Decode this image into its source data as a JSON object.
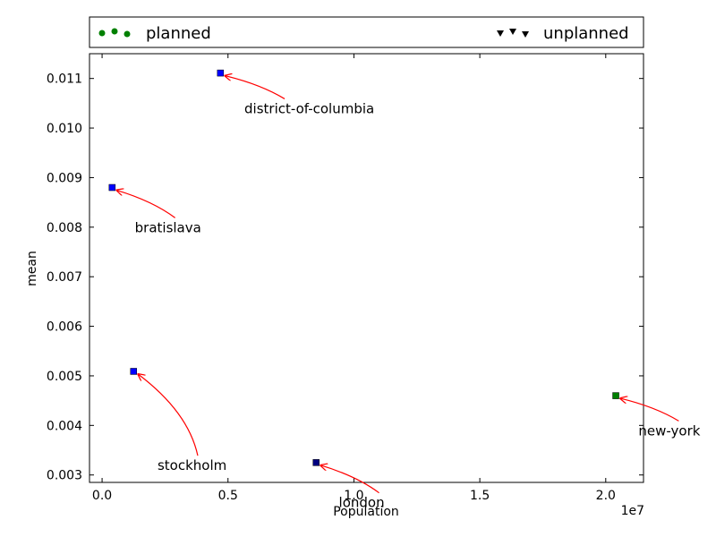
{
  "chart_data": {
    "type": "scatter",
    "xlabel": "Population",
    "ylabel": "mean",
    "x_offset_label": "1e7",
    "xlim": [
      -0.05,
      2.15
    ],
    "ylim": [
      0.00285,
      0.0115
    ],
    "x_ticks": [
      0.0,
      0.5,
      1.0,
      1.5,
      2.0
    ],
    "x_tick_labels": [
      "0.0",
      "0.5",
      "1.0",
      "1.5",
      "2.0"
    ],
    "y_ticks": [
      0.003,
      0.004,
      0.005,
      0.006,
      0.007,
      0.008,
      0.009,
      0.01,
      0.011
    ],
    "y_tick_labels": [
      "0.003",
      "0.004",
      "0.005",
      "0.006",
      "0.007",
      "0.008",
      "0.009",
      "0.010",
      "0.011"
    ],
    "legend": {
      "placement": "top",
      "entries": [
        {
          "label": "planned",
          "marker": "circle",
          "color": "#008000"
        },
        {
          "label": "unplanned",
          "marker": "triangle-down",
          "color": "#000000"
        }
      ]
    },
    "points": [
      {
        "label": "district-of-columbia",
        "x": 0.47,
        "y": 0.01111,
        "color": "#0000ff",
        "label_x": 0.565,
        "label_y": 0.0103
      },
      {
        "label": "bratislava",
        "x": 0.04,
        "y": 0.0088,
        "color": "#0000ff",
        "label_x": 0.13,
        "label_y": 0.0079
      },
      {
        "label": "stockholm",
        "x": 0.125,
        "y": 0.00509,
        "color": "#0000ff",
        "label_x": 0.22,
        "label_y": 0.0031
      },
      {
        "label": "london",
        "x": 0.85,
        "y": 0.00325,
        "color": "#000080",
        "label_x": 0.94,
        "label_y": 0.00235
      },
      {
        "label": "new-york",
        "x": 2.04,
        "y": 0.0046,
        "color": "#008000",
        "label_x": 2.13,
        "label_y": 0.0038
      }
    ],
    "annotation_arrow_color": "#ff0000"
  }
}
